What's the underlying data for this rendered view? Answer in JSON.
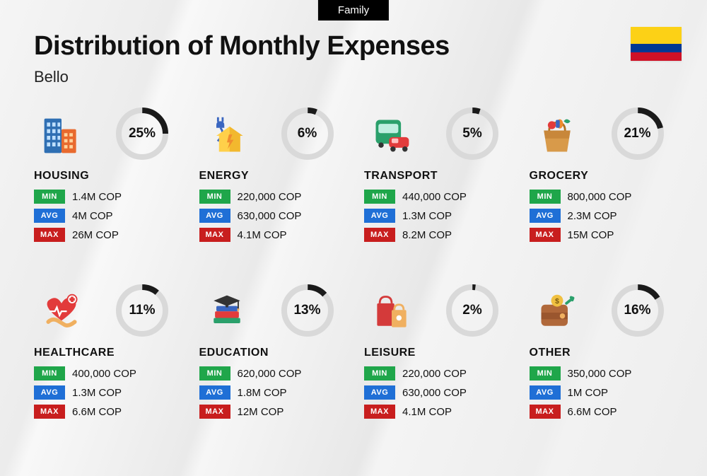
{
  "header": {
    "tag": "Family",
    "title": "Distribution of Monthly Expenses",
    "subtitle": "Bello"
  },
  "flag": {
    "top_color": "#fcd116",
    "mid_color": "#003893",
    "bot_color": "#ce1126"
  },
  "donut": {
    "track_color": "#d9d9d9",
    "fill_color": "#1a1a1a",
    "stroke_width": 8
  },
  "badges": {
    "min_label": "MIN",
    "min_color": "#1fa64a",
    "avg_label": "AVG",
    "avg_color": "#1f6fd6",
    "max_label": "MAX",
    "max_color": "#c81e1e"
  },
  "categories": [
    {
      "key": "housing",
      "label": "HOUSING",
      "percent": 25,
      "percent_text": "25%",
      "min": "1.4M COP",
      "avg": "4M COP",
      "max": "26M COP"
    },
    {
      "key": "energy",
      "label": "ENERGY",
      "percent": 6,
      "percent_text": "6%",
      "min": "220,000 COP",
      "avg": "630,000 COP",
      "max": "4.1M COP"
    },
    {
      "key": "transport",
      "label": "TRANSPORT",
      "percent": 5,
      "percent_text": "5%",
      "min": "440,000 COP",
      "avg": "1.3M COP",
      "max": "8.2M COP"
    },
    {
      "key": "grocery",
      "label": "GROCERY",
      "percent": 21,
      "percent_text": "21%",
      "min": "800,000 COP",
      "avg": "2.3M COP",
      "max": "15M COP"
    },
    {
      "key": "healthcare",
      "label": "HEALTHCARE",
      "percent": 11,
      "percent_text": "11%",
      "min": "400,000 COP",
      "avg": "1.3M COP",
      "max": "6.6M COP"
    },
    {
      "key": "education",
      "label": "EDUCATION",
      "percent": 13,
      "percent_text": "13%",
      "min": "620,000 COP",
      "avg": "1.8M COP",
      "max": "12M COP"
    },
    {
      "key": "leisure",
      "label": "LEISURE",
      "percent": 2,
      "percent_text": "2%",
      "min": "220,000 COP",
      "avg": "630,000 COP",
      "max": "4.1M COP"
    },
    {
      "key": "other",
      "label": "OTHER",
      "percent": 16,
      "percent_text": "16%",
      "min": "350,000 COP",
      "avg": "1M COP",
      "max": "6.6M COP"
    }
  ]
}
